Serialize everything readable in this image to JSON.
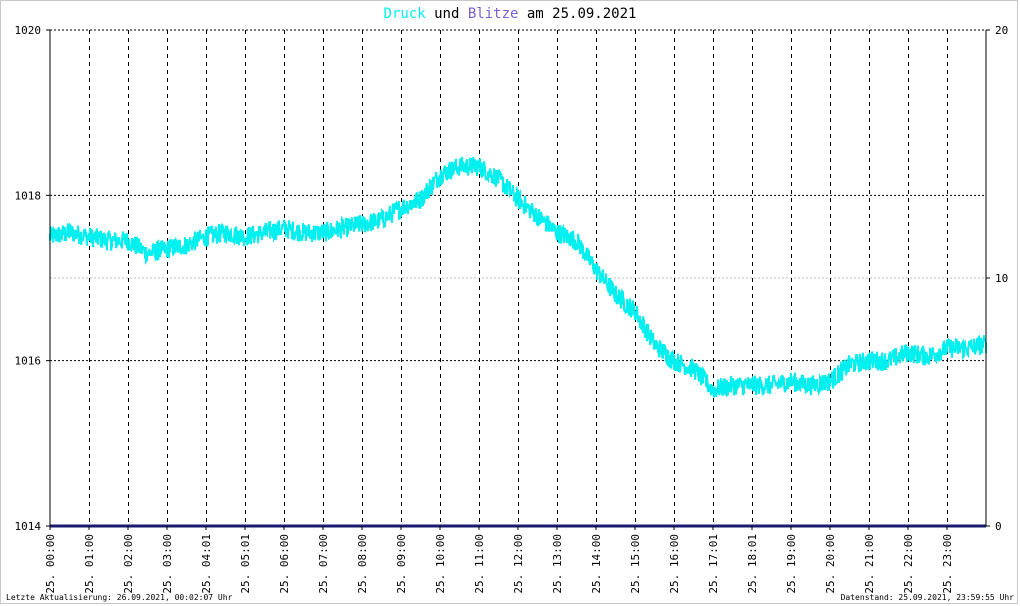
{
  "title": {
    "word1": "Druck",
    "word2": "und",
    "word3": "Blitze",
    "word4": "am 25.09.2021"
  },
  "colors": {
    "pressure": "#00f0f0",
    "lightning": "#7a5fd0",
    "baseline": "#1a1a70",
    "grid": "#000000",
    "text": "#000000"
  },
  "footer": {
    "left": "Letzte Aktualisierung: 26.09.2021, 00:02:07 Uhr",
    "right": "Datenstand: 25.09.2021, 23:59:55 Uhr"
  },
  "chart_data": {
    "type": "line",
    "y_left": {
      "min": 1014,
      "max": 1020,
      "ticks": [
        "1014",
        "1016",
        "1018",
        "1020"
      ]
    },
    "y_right": {
      "min": 0,
      "max": 20,
      "ticks": [
        "0",
        "10",
        "20"
      ]
    },
    "x_range": [
      0,
      24
    ],
    "x_ticks": [
      {
        "t": 0,
        "label": "25. 00:00"
      },
      {
        "t": 1,
        "label": "25. 01:00"
      },
      {
        "t": 2,
        "label": "25. 02:00"
      },
      {
        "t": 3,
        "label": "25. 03:00"
      },
      {
        "t": 4,
        "label": "25. 04:01"
      },
      {
        "t": 5,
        "label": "25. 05:01"
      },
      {
        "t": 6,
        "label": "25. 06:00"
      },
      {
        "t": 7,
        "label": "25. 07:00"
      },
      {
        "t": 8,
        "label": "25. 08:00"
      },
      {
        "t": 9,
        "label": "25. 09:00"
      },
      {
        "t": 10,
        "label": "25. 10:00"
      },
      {
        "t": 11,
        "label": "25. 11:00"
      },
      {
        "t": 12,
        "label": "25. 12:00"
      },
      {
        "t": 13,
        "label": "25. 13:00"
      },
      {
        "t": 14,
        "label": "25. 14:00"
      },
      {
        "t": 15,
        "label": "25. 15:00"
      },
      {
        "t": 16,
        "label": "25. 16:00"
      },
      {
        "t": 17,
        "label": "25. 17:01"
      },
      {
        "t": 18,
        "label": "25. 18:01"
      },
      {
        "t": 19,
        "label": "25. 19:00"
      },
      {
        "t": 20,
        "label": "25. 20:00"
      },
      {
        "t": 21,
        "label": "25. 21:00"
      },
      {
        "t": 22,
        "label": "25. 22:00"
      },
      {
        "t": 23,
        "label": "25. 23:00"
      }
    ],
    "series": [
      {
        "name": "Druck",
        "axis": "left",
        "points": [
          [
            0.0,
            1017.5
          ],
          [
            0.5,
            1017.55
          ],
          [
            1.0,
            1017.5
          ],
          [
            1.5,
            1017.45
          ],
          [
            2.0,
            1017.45
          ],
          [
            2.5,
            1017.3
          ],
          [
            3.0,
            1017.35
          ],
          [
            3.5,
            1017.4
          ],
          [
            4.0,
            1017.5
          ],
          [
            4.5,
            1017.55
          ],
          [
            5.0,
            1017.5
          ],
          [
            5.5,
            1017.55
          ],
          [
            6.0,
            1017.6
          ],
          [
            6.5,
            1017.55
          ],
          [
            7.0,
            1017.55
          ],
          [
            7.5,
            1017.6
          ],
          [
            8.0,
            1017.65
          ],
          [
            8.5,
            1017.7
          ],
          [
            9.0,
            1017.85
          ],
          [
            9.5,
            1017.95
          ],
          [
            10.0,
            1018.25
          ],
          [
            10.5,
            1018.35
          ],
          [
            11.0,
            1018.35
          ],
          [
            11.5,
            1018.2
          ],
          [
            12.0,
            1017.95
          ],
          [
            12.5,
            1017.75
          ],
          [
            13.0,
            1017.55
          ],
          [
            13.5,
            1017.45
          ],
          [
            14.0,
            1017.1
          ],
          [
            14.5,
            1016.8
          ],
          [
            15.0,
            1016.6
          ],
          [
            15.5,
            1016.2
          ],
          [
            16.0,
            1016.0
          ],
          [
            16.5,
            1015.9
          ],
          [
            17.0,
            1015.65
          ],
          [
            17.5,
            1015.7
          ],
          [
            18.0,
            1015.7
          ],
          [
            18.5,
            1015.7
          ],
          [
            19.0,
            1015.75
          ],
          [
            19.5,
            1015.7
          ],
          [
            20.0,
            1015.75
          ],
          [
            20.5,
            1015.95
          ],
          [
            21.0,
            1016.0
          ],
          [
            21.5,
            1016.0
          ],
          [
            22.0,
            1016.1
          ],
          [
            22.5,
            1016.05
          ],
          [
            23.0,
            1016.15
          ],
          [
            23.5,
            1016.15
          ],
          [
            24.0,
            1016.2
          ]
        ]
      },
      {
        "name": "Blitze",
        "axis": "right",
        "points": [
          [
            0,
            0
          ],
          [
            24,
            0
          ]
        ]
      }
    ]
  }
}
